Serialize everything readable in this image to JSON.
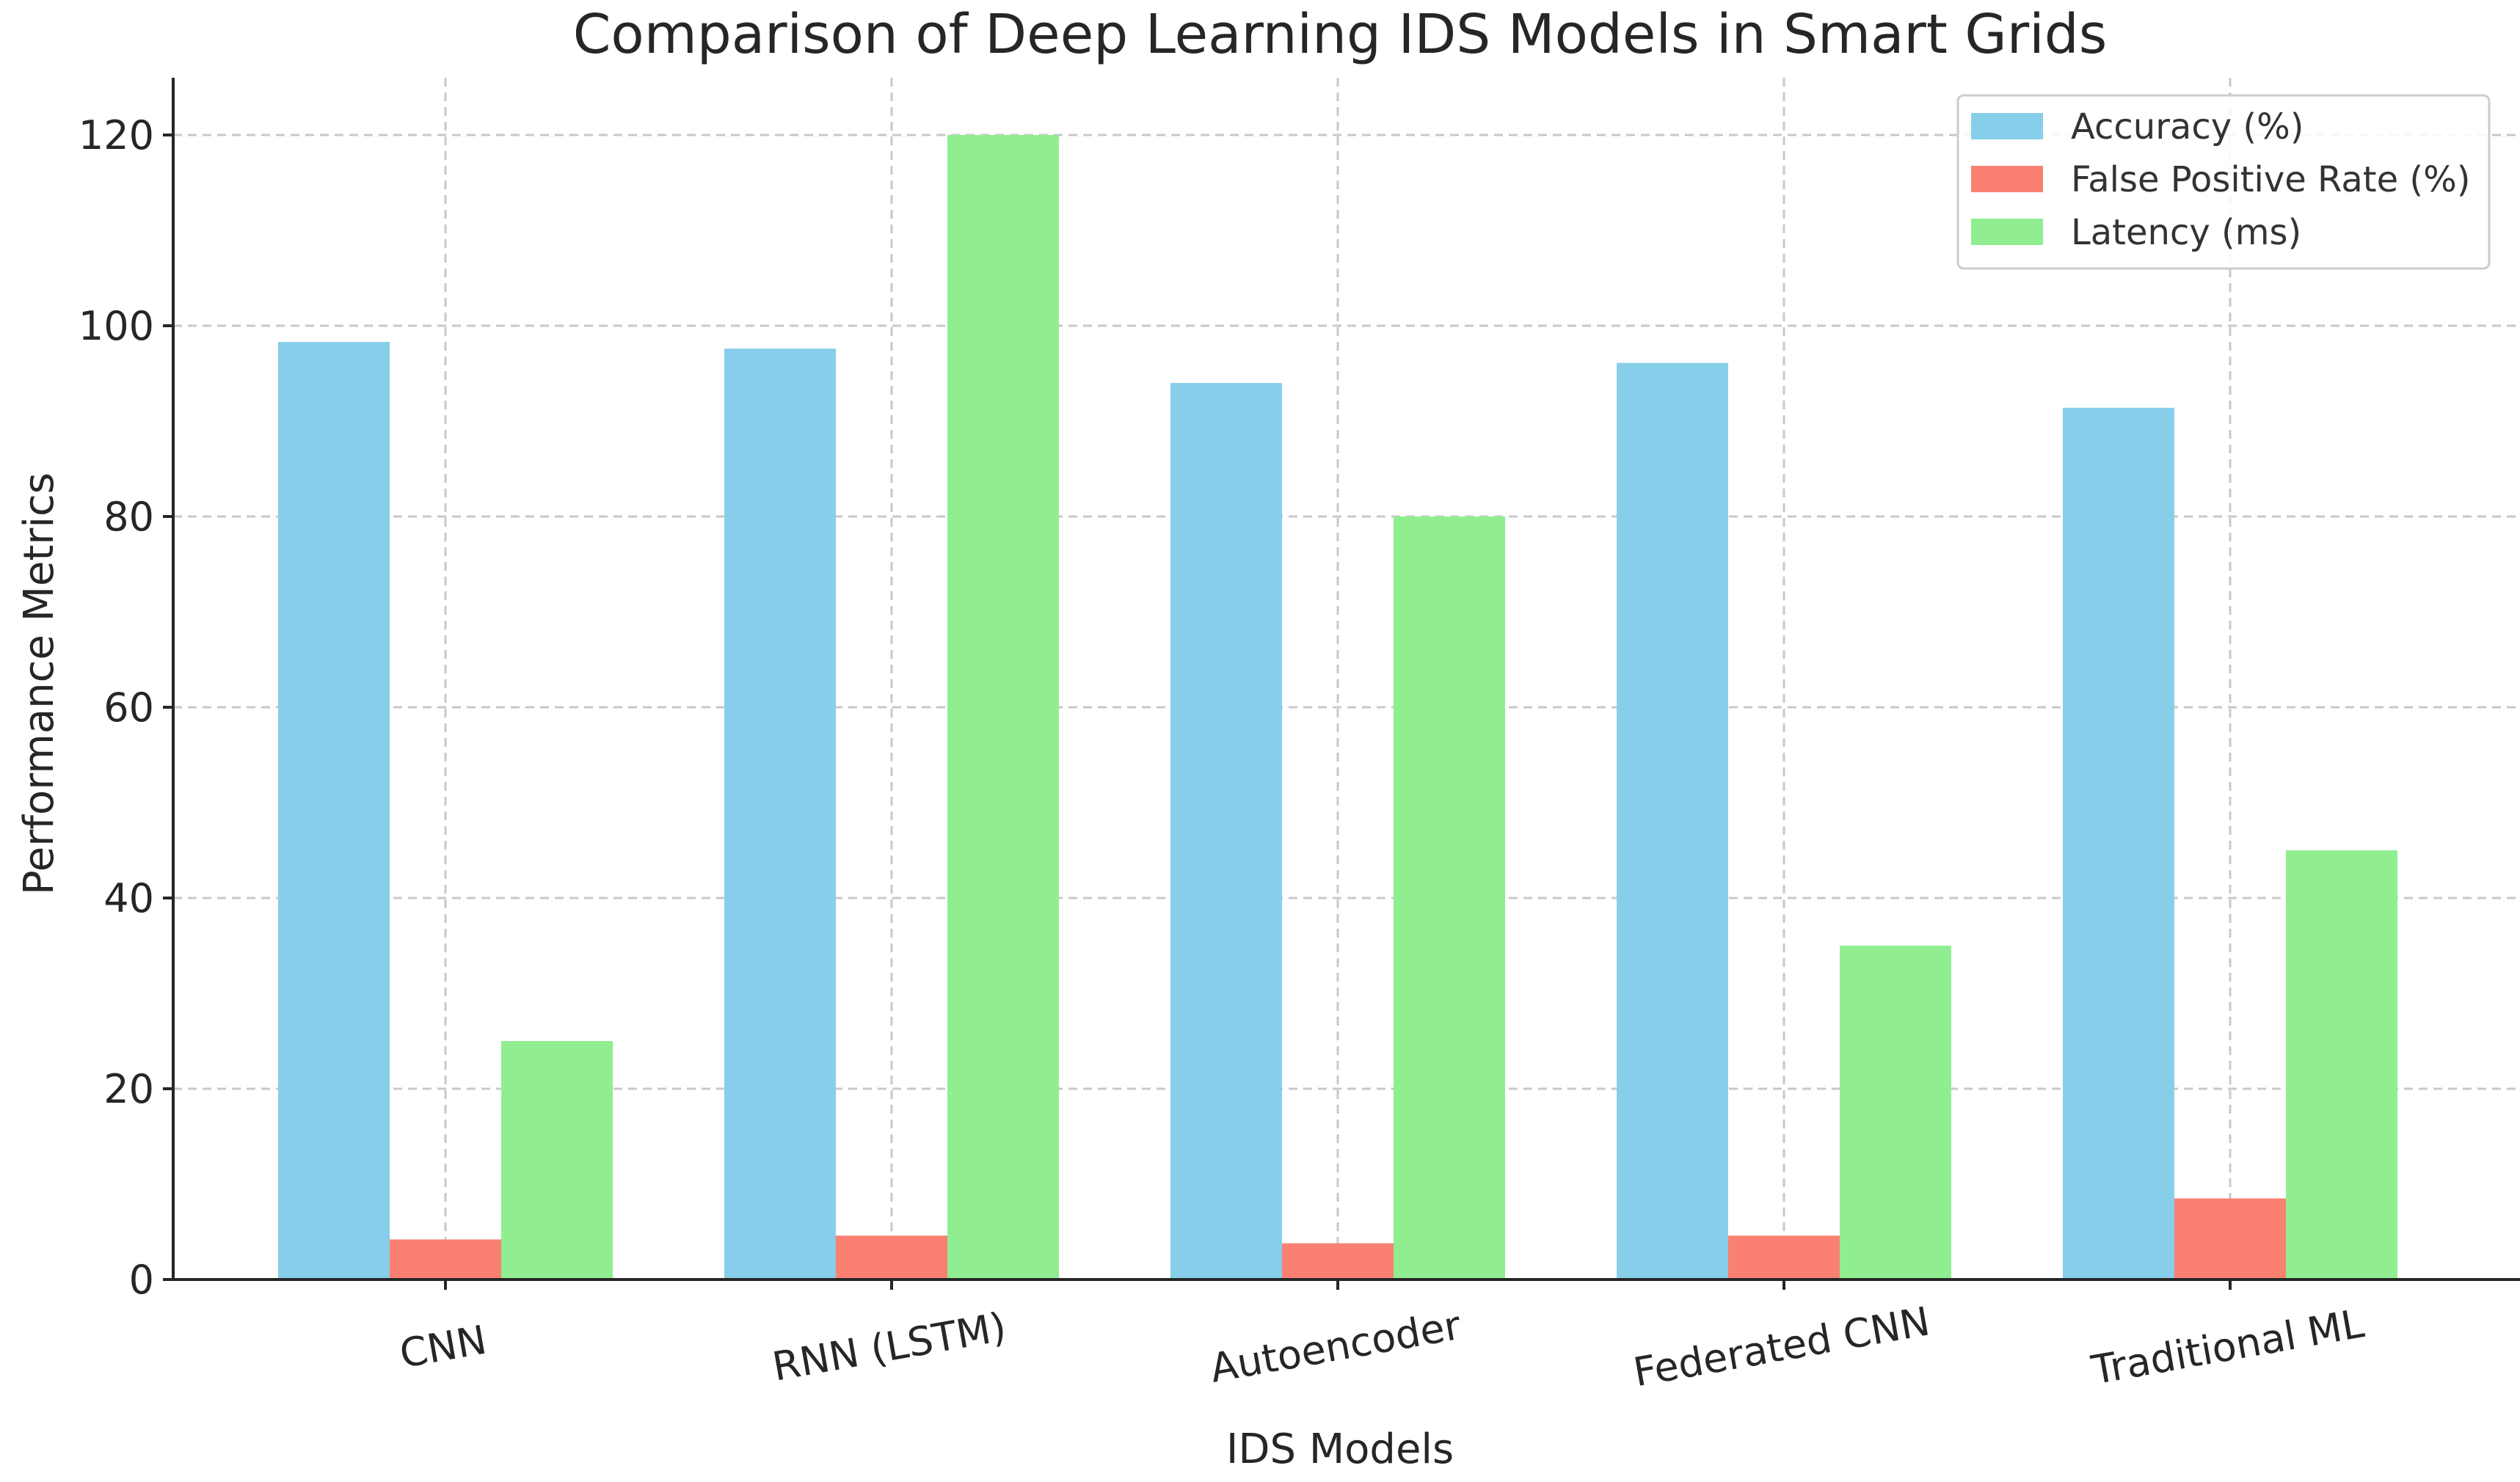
{
  "chart_data": {
    "type": "bar",
    "title": "Comparison of Deep Learning IDS Models in Smart Grids",
    "xlabel": "IDS Models",
    "ylabel": "Performance Metrics",
    "categories": [
      "CNN",
      "RNN (LSTM)",
      "Autoencoder",
      "Federated CNN",
      "Traditional ML"
    ],
    "series": [
      {
        "name": "Accuracy (%)",
        "color": "#87CEEB",
        "values": [
          98.3,
          97.6,
          94.0,
          96.1,
          91.4
        ]
      },
      {
        "name": "False Positive Rate (%)",
        "color": "#FA8072",
        "values": [
          4.2,
          4.6,
          3.8,
          4.6,
          8.5
        ]
      },
      {
        "name": "Latency (ms)",
        "color": "#90EE90",
        "values": [
          25,
          120,
          80,
          35,
          45
        ]
      }
    ],
    "ylim": [
      0,
      126
    ],
    "yticks": [
      0,
      20,
      40,
      60,
      80,
      100,
      120
    ],
    "grid": true,
    "legend_position": "top-right"
  }
}
